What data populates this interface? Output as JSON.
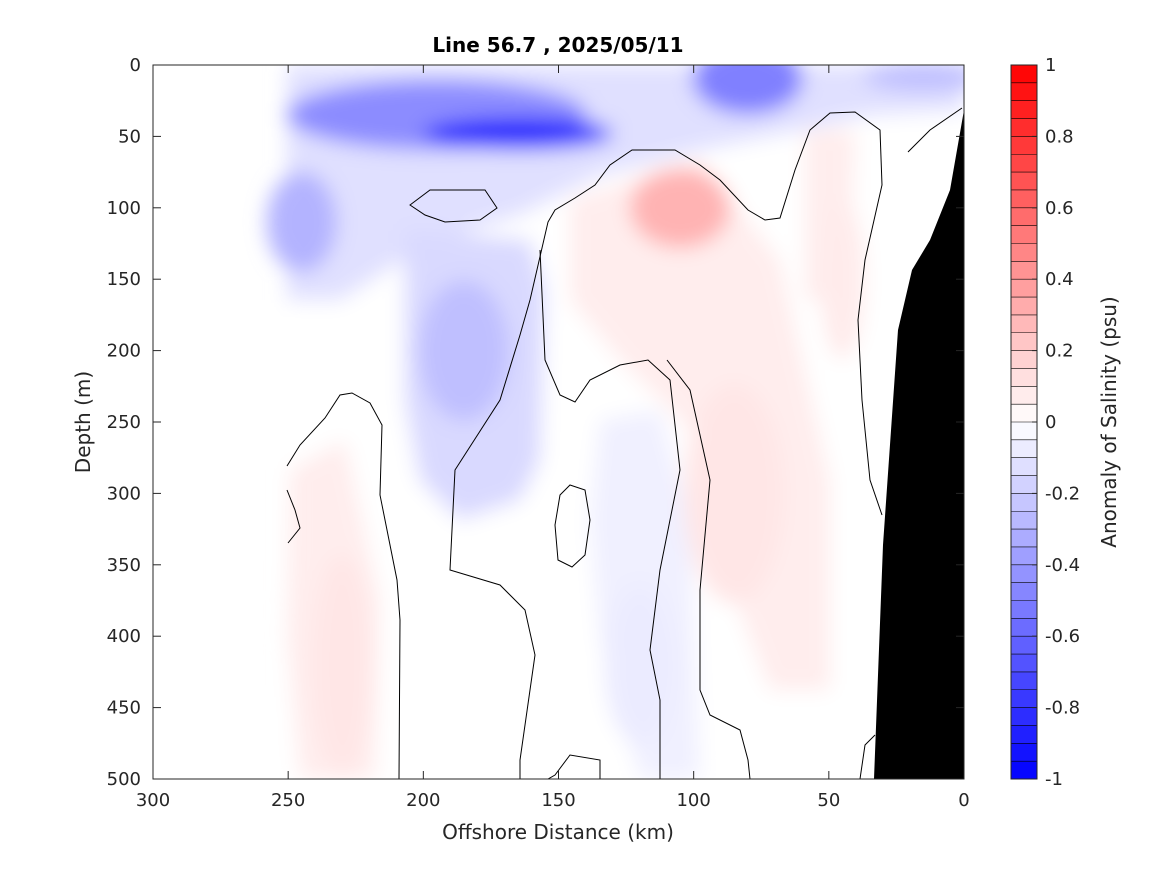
{
  "chart_data": {
    "type": "heatmap",
    "title": "Line 56.7 , 2025/05/11",
    "xlabel": "Offshore Distance (km)",
    "ylabel": "Depth (m)",
    "xlim": [
      300,
      0
    ],
    "ylim": [
      500,
      0
    ],
    "x_reversed": true,
    "y_reversed": true,
    "x_ticks": [
      300,
      250,
      200,
      150,
      100,
      50,
      0
    ],
    "y_ticks": [
      0,
      50,
      100,
      150,
      200,
      250,
      300,
      350,
      400,
      450,
      500
    ],
    "colorbar": {
      "label": "Anomaly of Salinity (psu)",
      "range": [
        -1,
        1
      ],
      "levels": 40,
      "ticks": [
        1,
        0.8,
        0.6,
        0.4,
        0.2,
        0,
        -0.2,
        -0.4,
        -0.6,
        -0.8,
        -1
      ],
      "colors": {
        "low": "#0000ff",
        "mid": "#ffffff",
        "high": "#ff0000"
      }
    },
    "data_extent_x": [
      0,
      250
    ],
    "bathymetry_color": "#000000",
    "regions": [
      {
        "name": "surface-fresh-core",
        "x": 165,
        "depth": 48,
        "anomaly": -0.85
      },
      {
        "name": "surface-fresh-band",
        "x": 195,
        "depth": 35,
        "anomaly": -0.45
      },
      {
        "name": "surface-fresh-east",
        "x": 80,
        "depth": 10,
        "anomaly": -0.5
      },
      {
        "name": "surface-fresh-nearshore",
        "x": 15,
        "depth": 8,
        "anomaly": -0.25
      },
      {
        "name": "offshore-fresh-100m",
        "x": 245,
        "depth": 110,
        "anomaly": -0.3
      },
      {
        "name": "midwater-fresh",
        "x": 185,
        "depth": 200,
        "anomaly": -0.25
      },
      {
        "name": "deep-fresh",
        "x": 120,
        "depth": 420,
        "anomaly": -0.08
      },
      {
        "name": "salty-core",
        "x": 105,
        "depth": 100,
        "anomaly": 0.3
      },
      {
        "name": "salty-tongue",
        "x": 85,
        "depth": 300,
        "anomaly": 0.1
      },
      {
        "name": "salty-deep-offshore",
        "x": 230,
        "depth": 420,
        "anomaly": 0.1
      },
      {
        "name": "salty-nearshore",
        "x": 45,
        "depth": 150,
        "anomaly": 0.08
      }
    ]
  }
}
